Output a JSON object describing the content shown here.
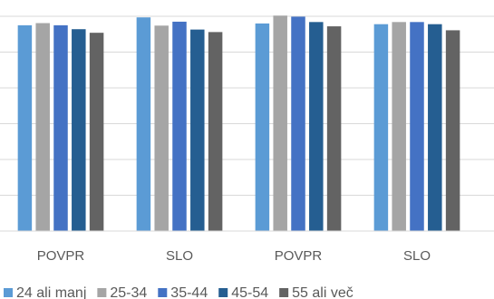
{
  "chart_data": {
    "type": "bar",
    "categories": [
      "POVPR",
      "SLO",
      "POVPR",
      "SLO"
    ],
    "series": [
      {
        "name": "24 ali manj",
        "color": "#5B9BD5",
        "values": [
          5.75,
          5.97,
          5.8,
          5.78
        ]
      },
      {
        "name": "25-34",
        "color": "#A5A5A5",
        "values": [
          5.81,
          5.74,
          6.02,
          5.84
        ]
      },
      {
        "name": "35-44",
        "color": "#4472C4",
        "values": [
          5.75,
          5.85,
          5.99,
          5.84
        ]
      },
      {
        "name": "45-54",
        "color": "#255E91",
        "values": [
          5.64,
          5.63,
          5.84,
          5.78
        ]
      },
      {
        "name": "55 ali več",
        "color": "#636363",
        "values": [
          5.54,
          5.56,
          5.72,
          5.61
        ]
      }
    ],
    "ylim": [
      0,
      6
    ],
    "grid": true,
    "legend": "bottom",
    "gridline_color": "#D9D9D9",
    "label_color": "#595959"
  }
}
